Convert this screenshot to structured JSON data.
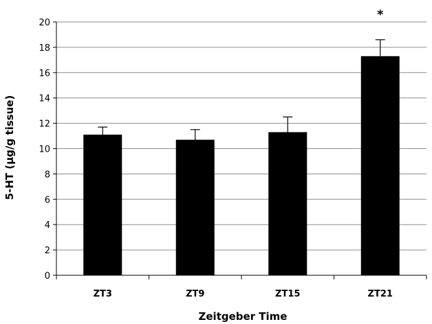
{
  "chart_data": {
    "type": "bar",
    "categories": [
      "ZT3",
      "ZT9",
      "ZT15",
      "ZT21"
    ],
    "values": [
      11.1,
      10.7,
      11.3,
      17.3
    ],
    "errors": [
      0.6,
      0.8,
      1.2,
      1.3
    ],
    "annotations": [
      "",
      "",
      "",
      "*"
    ],
    "xlabel": "Zeitgeber Time",
    "ylabel": "5-HT (µg/g tissue)",
    "ylim": [
      0,
      20
    ],
    "yticks": [
      0,
      2,
      4,
      6,
      8,
      10,
      12,
      14,
      16,
      18,
      20
    ],
    "grid": true,
    "bar_color": "#000000",
    "grid_color": "#8c8c8c"
  }
}
